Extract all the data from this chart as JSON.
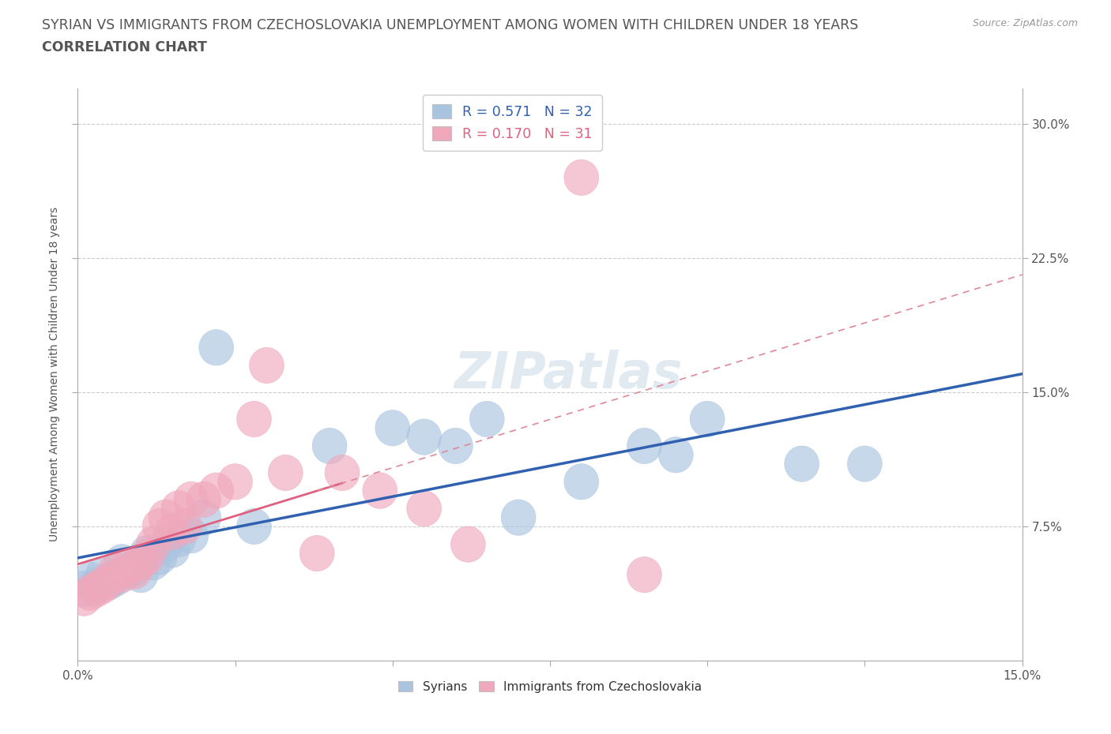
{
  "title_line1": "SYRIAN VS IMMIGRANTS FROM CZECHOSLOVAKIA UNEMPLOYMENT AMONG WOMEN WITH CHILDREN UNDER 18 YEARS",
  "title_line2": "CORRELATION CHART",
  "source": "Source: ZipAtlas.com",
  "ylabel": "Unemployment Among Women with Children Under 18 years",
  "xlim": [
    0.0,
    0.15
  ],
  "ylim": [
    0.0,
    0.32
  ],
  "ytick_vals": [
    0.075,
    0.15,
    0.225,
    0.3
  ],
  "ytick_labels": [
    "7.5%",
    "15.0%",
    "22.5%",
    "30.0%"
  ],
  "legend_R_syrian": "R = 0.571",
  "legend_N_syrian": "N = 32",
  "legend_R_czech": "R = 0.170",
  "legend_N_czech": "N = 31",
  "syrian_color": "#aac4e0",
  "czech_color": "#f0a8bc",
  "syrian_line_color": "#3060b0",
  "czech_solid_color": "#e06080",
  "czech_dash_color": "#e08898",
  "watermark": "ZIPatlas",
  "title_color": "#555555",
  "source_color": "#999999",
  "grid_color": "#cccccc",
  "tick_color": "#aaaaaa",
  "label_color": "#555555",
  "syrians_x": [
    0.001,
    0.002,
    0.003,
    0.004,
    0.005,
    0.006,
    0.007,
    0.008,
    0.009,
    0.01,
    0.011,
    0.012,
    0.013,
    0.014,
    0.015,
    0.016,
    0.018,
    0.02,
    0.022,
    0.028,
    0.04,
    0.05,
    0.055,
    0.06,
    0.065,
    0.07,
    0.08,
    0.09,
    0.095,
    0.1,
    0.115,
    0.125
  ],
  "syrians_y": [
    0.04,
    0.045,
    0.042,
    0.048,
    0.044,
    0.046,
    0.055,
    0.05,
    0.052,
    0.048,
    0.06,
    0.055,
    0.058,
    0.065,
    0.062,
    0.068,
    0.07,
    0.08,
    0.175,
    0.075,
    0.12,
    0.13,
    0.125,
    0.12,
    0.135,
    0.08,
    0.1,
    0.12,
    0.115,
    0.135,
    0.11,
    0.11
  ],
  "czech_x": [
    0.001,
    0.002,
    0.003,
    0.004,
    0.005,
    0.006,
    0.007,
    0.008,
    0.009,
    0.01,
    0.011,
    0.012,
    0.013,
    0.014,
    0.015,
    0.016,
    0.017,
    0.018,
    0.02,
    0.022,
    0.025,
    0.028,
    0.03,
    0.033,
    0.038,
    0.042,
    0.048,
    0.055,
    0.062,
    0.08,
    0.09
  ],
  "czech_y": [
    0.035,
    0.038,
    0.04,
    0.042,
    0.045,
    0.05,
    0.048,
    0.052,
    0.05,
    0.055,
    0.058,
    0.065,
    0.075,
    0.08,
    0.072,
    0.085,
    0.075,
    0.09,
    0.09,
    0.095,
    0.1,
    0.135,
    0.165,
    0.105,
    0.06,
    0.105,
    0.095,
    0.085,
    0.065,
    0.27,
    0.048
  ]
}
